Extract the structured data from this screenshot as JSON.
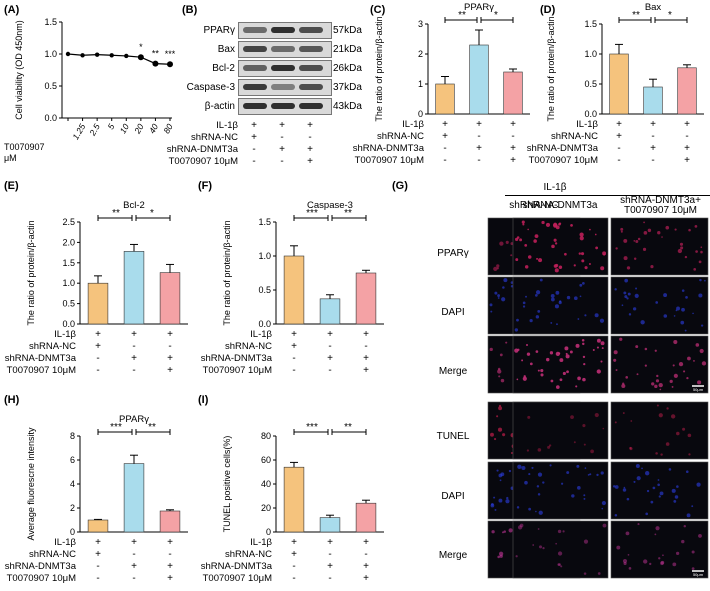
{
  "panel_labels": [
    "(A)",
    "(B)",
    "(C)",
    "(D)",
    "(E)",
    "(F)",
    "(G)",
    "(H)",
    "(I)"
  ],
  "panel_a": {
    "ylabel": "Cell viability (OD 450nm)",
    "xlabel_line1": "T0070907",
    "xlabel_line2": "μM",
    "ticks_y": [
      "0.0",
      "0.5",
      "1.0",
      "1.5"
    ],
    "ticks_x": [
      "1.25",
      "2.5",
      "5",
      "10",
      "20",
      "40",
      "80"
    ],
    "stars": [
      {
        "i": 5,
        "s": "*"
      },
      {
        "i": 6,
        "s": "**"
      },
      {
        "i": 7,
        "s": "***"
      }
    ]
  },
  "panel_b": {
    "bands": [
      {
        "name": "PPARγ",
        "kda": "57kDa"
      },
      {
        "name": "Bax",
        "kda": "21kDa"
      },
      {
        "name": "Bcl-2",
        "kda": "26kDa"
      },
      {
        "name": "Caspase-3",
        "kda": "37kDa"
      },
      {
        "name": "β-actin",
        "kda": "43kDa"
      }
    ],
    "conditions": [
      {
        "label": "IL-1β",
        "signs": [
          "+",
          "+",
          "+"
        ]
      },
      {
        "label": "shRNA-NC",
        "signs": [
          "+",
          "-",
          "-"
        ]
      },
      {
        "label": "shRNA-DNMT3a",
        "signs": [
          "-",
          "+",
          "+"
        ]
      },
      {
        "label": "T0070907 10μM",
        "signs": [
          "-",
          "-",
          "+"
        ]
      }
    ]
  },
  "bar_conditions": [
    {
      "label": "IL-1β",
      "signs": [
        "+",
        "+",
        "+"
      ]
    },
    {
      "label": "shRNA-NC",
      "signs": [
        "+",
        "-",
        "-"
      ]
    },
    {
      "label": "shRNA-DNMT3a",
      "signs": [
        "-",
        "+",
        "+"
      ]
    },
    {
      "label": "T0070907 10μM",
      "signs": [
        "-",
        "-",
        "+"
      ]
    }
  ],
  "chart_data": [
    {
      "panel": "A",
      "type": "line",
      "xlabel": "T0070907 μM",
      "ylabel": "Cell viability (OD 450nm)",
      "x": [
        "0",
        "1.25",
        "2.5",
        "5",
        "10",
        "20",
        "40",
        "80"
      ],
      "values": [
        1.0,
        0.98,
        0.99,
        0.98,
        0.97,
        0.95,
        0.85,
        0.84
      ],
      "ylim": [
        0,
        1.5
      ]
    },
    {
      "panel": "C",
      "type": "bar",
      "title": "PPARγ",
      "ylabel": "The ratio of protein/β-actin",
      "values": [
        1.0,
        2.3,
        1.4
      ],
      "errors": [
        0.25,
        0.5,
        0.1
      ],
      "ylim": [
        0,
        3
      ],
      "ticks": [
        "0",
        "1",
        "2",
        "3"
      ],
      "sig": [
        "**",
        "*"
      ]
    },
    {
      "panel": "D",
      "type": "bar",
      "title": "Bax",
      "ylabel": "The ratio of protein/β-actin",
      "values": [
        1.0,
        0.45,
        0.77
      ],
      "errors": [
        0.16,
        0.13,
        0.05
      ],
      "ylim": [
        0,
        1.5
      ],
      "ticks": [
        "0.0",
        "0.5",
        "1.0",
        "1.5"
      ],
      "sig": [
        "**",
        "*"
      ]
    },
    {
      "panel": "E",
      "type": "bar",
      "title": "Bcl-2",
      "ylabel": "The ratio of protein/β-actin",
      "values": [
        1.0,
        1.78,
        1.26
      ],
      "errors": [
        0.18,
        0.17,
        0.2
      ],
      "ylim": [
        0,
        2.5
      ],
      "ticks": [
        "0.0",
        "0.5",
        "1.0",
        "1.5",
        "2.0",
        "2.5"
      ],
      "sig": [
        "**",
        "*"
      ]
    },
    {
      "panel": "F",
      "type": "bar",
      "title": "Caspase-3",
      "ylabel": "The ratio of protein/β-actin",
      "values": [
        1.0,
        0.37,
        0.75
      ],
      "errors": [
        0.15,
        0.06,
        0.04
      ],
      "ylim": [
        0,
        1.5
      ],
      "ticks": [
        "0.0",
        "0.5",
        "1.0",
        "1.5"
      ],
      "sig": [
        "***",
        "**"
      ]
    },
    {
      "panel": "H",
      "type": "bar",
      "title": "PPARγ",
      "ylabel": "Average fluorescne intensity",
      "values": [
        1.0,
        5.7,
        1.75
      ],
      "errors": [
        0.05,
        0.7,
        0.1
      ],
      "ylim": [
        0,
        8
      ],
      "ticks": [
        "0",
        "2",
        "4",
        "6",
        "8"
      ],
      "sig": [
        "***",
        "**"
      ]
    },
    {
      "panel": "I",
      "type": "bar",
      "title": "",
      "ylabel": "TUNEL positive cells(%)",
      "values": [
        54,
        12,
        24
      ],
      "errors": [
        4,
        2,
        2.5
      ],
      "ylim": [
        0,
        80
      ],
      "ticks": [
        "0",
        "20",
        "40",
        "60",
        "80"
      ],
      "sig": [
        "***",
        "**"
      ]
    }
  ],
  "bar_colors": [
    "#f5c37d",
    "#a9dcec",
    "#f4a2a5"
  ],
  "panel_g": {
    "group_label": "IL-1β",
    "columns": [
      "shRNA-NC",
      "shRNA-DNMT3a",
      "shRNA-DNMT3a+\nT0070907 10μM"
    ],
    "rows": [
      "PPARγ",
      "DAPI",
      "Merge",
      "TUNEL",
      "DAPI",
      "Merge"
    ],
    "scale_bar": "50μm",
    "row_colors": [
      "#c0205a",
      "#2a3ad6",
      "#c8307a",
      "#d02050",
      "#2a3ad6",
      "#b0308a"
    ],
    "intensity": [
      [
        0.35,
        0.9,
        0.55
      ],
      [
        0.5,
        0.5,
        0.5
      ],
      [
        0.45,
        0.85,
        0.6
      ],
      [
        0.5,
        0.1,
        0.2
      ],
      [
        0.5,
        0.5,
        0.5
      ],
      [
        0.55,
        0.25,
        0.35
      ]
    ]
  }
}
